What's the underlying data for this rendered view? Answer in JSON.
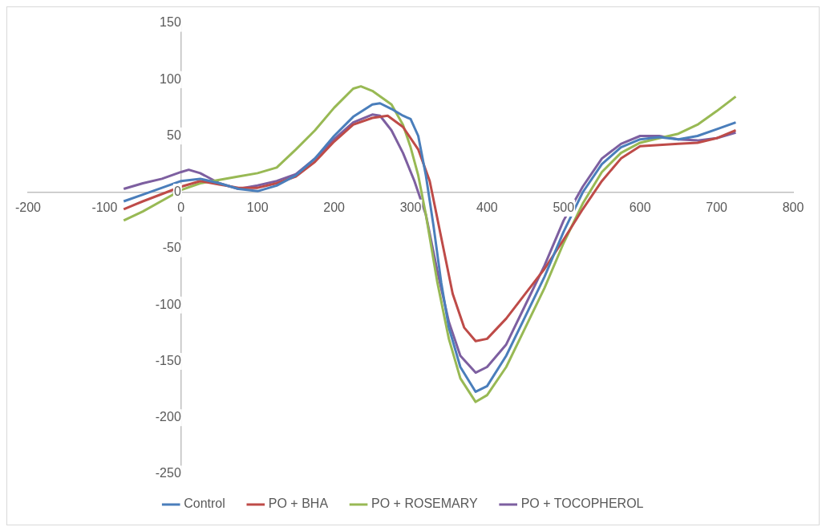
{
  "chart_data": {
    "type": "line",
    "xlim": [
      -200,
      800
    ],
    "xticks": [
      -200,
      -100,
      0,
      100,
      200,
      300,
      400,
      500,
      600,
      700,
      800
    ],
    "ylim": [
      -250,
      150
    ],
    "yticks": [
      -250,
      -200,
      -150,
      -100,
      -50,
      0,
      50,
      100,
      150
    ],
    "grid": false,
    "legend": "bottom",
    "marker": "none",
    "line_style": "solid",
    "series": [
      {
        "name": "Control",
        "color": "#4a7ebb",
        "x": [
          -75,
          -50,
          0,
          25,
          50,
          75,
          100,
          125,
          150,
          175,
          200,
          225,
          250,
          260,
          275,
          290,
          300,
          310,
          320,
          330,
          340,
          350,
          365,
          385,
          400,
          425,
          450,
          475,
          500,
          525,
          550,
          575,
          600,
          625,
          650,
          675,
          700,
          725
        ],
        "values": [
          -8,
          -2,
          10,
          12,
          8,
          3,
          1,
          6,
          15,
          30,
          50,
          67,
          78,
          79,
          74,
          68,
          65,
          50,
          15,
          -30,
          -80,
          -120,
          -155,
          -177,
          -172,
          -145,
          -110,
          -75,
          -35,
          0,
          25,
          40,
          47,
          49,
          47,
          50,
          56,
          62
        ]
      },
      {
        "name": "PO + BHA",
        "color": "#be4b48",
        "x": [
          -75,
          -50,
          0,
          25,
          50,
          75,
          100,
          125,
          150,
          175,
          200,
          225,
          250,
          270,
          290,
          310,
          325,
          340,
          355,
          370,
          385,
          400,
          425,
          450,
          475,
          500,
          525,
          550,
          575,
          600,
          625,
          650,
          675,
          700,
          725
        ],
        "values": [
          -15,
          -8,
          5,
          10,
          7,
          4,
          4,
          8,
          14,
          27,
          45,
          60,
          66,
          68,
          58,
          38,
          10,
          -40,
          -90,
          -120,
          -132,
          -130,
          -112,
          -90,
          -68,
          -42,
          -15,
          10,
          30,
          41,
          42,
          43,
          44,
          48,
          55
        ]
      },
      {
        "name": "PO + ROSEMARY",
        "color": "#98b954",
        "x": [
          -75,
          -50,
          0,
          25,
          50,
          75,
          100,
          125,
          150,
          175,
          200,
          225,
          235,
          250,
          275,
          290,
          300,
          310,
          320,
          335,
          350,
          365,
          385,
          400,
          425,
          450,
          475,
          500,
          525,
          550,
          575,
          600,
          625,
          650,
          675,
          700,
          725
        ],
        "values": [
          -25,
          -17,
          2,
          8,
          11,
          14,
          17,
          22,
          38,
          55,
          75,
          92,
          94,
          90,
          78,
          60,
          40,
          15,
          -20,
          -80,
          -130,
          -165,
          -186,
          -180,
          -155,
          -120,
          -85,
          -45,
          -10,
          18,
          35,
          44,
          48,
          52,
          60,
          72,
          85
        ]
      },
      {
        "name": "PO + TOCOPHEROL",
        "color": "#7d5fa0",
        "x": [
          -75,
          -50,
          -25,
          0,
          10,
          25,
          50,
          75,
          100,
          125,
          150,
          175,
          200,
          225,
          250,
          260,
          275,
          290,
          305,
          320,
          335,
          350,
          365,
          385,
          400,
          425,
          450,
          475,
          500,
          525,
          550,
          575,
          600,
          625,
          650,
          675,
          700,
          725
        ],
        "values": [
          3,
          8,
          12,
          18,
          20,
          17,
          8,
          3,
          6,
          10,
          16,
          30,
          47,
          62,
          69,
          68,
          55,
          35,
          10,
          -20,
          -70,
          -115,
          -145,
          -160,
          -155,
          -135,
          -100,
          -65,
          -25,
          5,
          30,
          43,
          50,
          50,
          47,
          46,
          48,
          53
        ]
      }
    ]
  }
}
